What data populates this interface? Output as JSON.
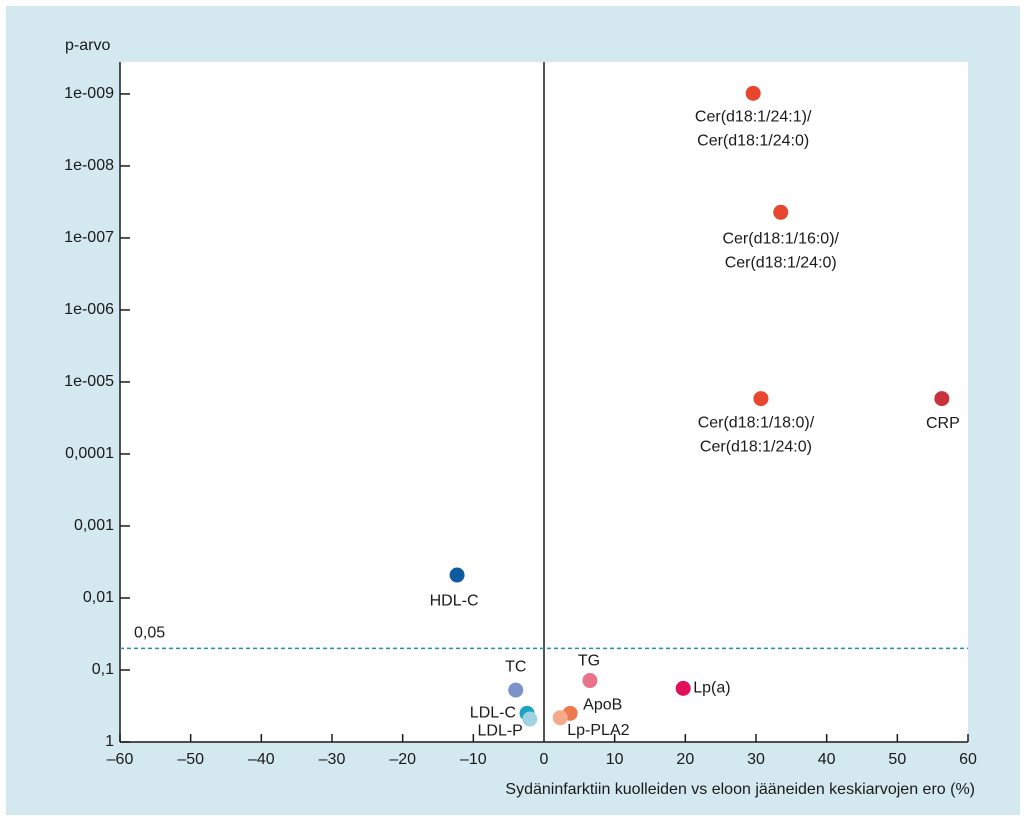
{
  "chart_data": {
    "type": "scatter",
    "ylabel": "p-arvo",
    "xlabel": "Sydäninfarktiin kuolleiden vs eloon jääneiden keskiarvojen ero (%)",
    "xlim": [
      -60,
      60
    ],
    "xticks": [
      {
        "value": -60,
        "label": "–60"
      },
      {
        "value": -50,
        "label": "–50"
      },
      {
        "value": -40,
        "label": "–40"
      },
      {
        "value": -30,
        "label": "–30"
      },
      {
        "value": -20,
        "label": "–20"
      },
      {
        "value": -10,
        "label": "–10"
      },
      0,
      10,
      20,
      30,
      40,
      50,
      60
    ],
    "ylim": [
      1,
      3.6e-10
    ],
    "yscale": "log",
    "yticks": [
      1,
      {
        "value": 0.1,
        "label": "0,1"
      },
      {
        "value": 0.01,
        "label": "0,01"
      },
      {
        "value": 0.001,
        "label": "0,001"
      },
      {
        "value": 0.0001,
        "label": "0,0001"
      },
      {
        "value": 1e-05,
        "label": "1e-005"
      },
      {
        "value": 1e-06,
        "label": "1e-006"
      },
      {
        "value": 1e-07,
        "label": "1e-007"
      },
      {
        "value": 1e-08,
        "label": "1e-008"
      },
      {
        "value": 1e-09,
        "label": "1e-009"
      }
    ],
    "threshold": {
      "value": 0.05,
      "label": "0,05",
      "color": "#2a8fa6"
    },
    "series": [
      {
        "name": "Cer(d18:1/24:1)/Cer(d18:1/24:0)",
        "color": "#e8462e",
        "x": [
          29.6
        ],
        "values": [
          9.8e-10
        ]
      },
      {
        "name": "Cer(d18:1/16:0)/Cer(d18:1/24:0)",
        "color": "#e8462e",
        "x": [
          33.5
        ],
        "values": [
          4.4e-08
        ]
      },
      {
        "name": "Cer(d18:1/18:0)/Cer(d18:1/24:0)",
        "color": "#e8462e",
        "x": [
          30.7
        ],
        "values": [
          1.7e-05
        ]
      },
      {
        "name": "CRP",
        "color": "#c8323a",
        "x": [
          56.3
        ],
        "values": [
          1.7e-05
        ]
      },
      {
        "name": "HDL-C",
        "color": "#0f5aa0",
        "x": [
          -12.3
        ],
        "values": [
          0.0048
        ]
      },
      {
        "name": "TC",
        "color": "#7b93c8",
        "x": [
          -4.0
        ],
        "values": [
          0.19
        ]
      },
      {
        "name": "TG",
        "color": "#e8738a",
        "x": [
          6.5
        ],
        "values": [
          0.14
        ]
      },
      {
        "name": "Lp(a)",
        "color": "#e0105a",
        "x": [
          19.7
        ],
        "values": [
          0.18
        ]
      },
      {
        "name": "LDL-C",
        "color": "#1aa5bd",
        "x": [
          -2.4
        ],
        "values": [
          0.4
        ]
      },
      {
        "name": "LDL-P",
        "color": "#9fd3e3",
        "x": [
          -2.0
        ],
        "values": [
          0.48
        ]
      },
      {
        "name": "ApoB",
        "color": "#ef7a4f",
        "x": [
          3.7
        ],
        "values": [
          0.4
        ]
      },
      {
        "name": "Lp-PLA2",
        "color": "#f5a88a",
        "x": [
          2.3
        ],
        "values": [
          0.46
        ]
      }
    ]
  }
}
